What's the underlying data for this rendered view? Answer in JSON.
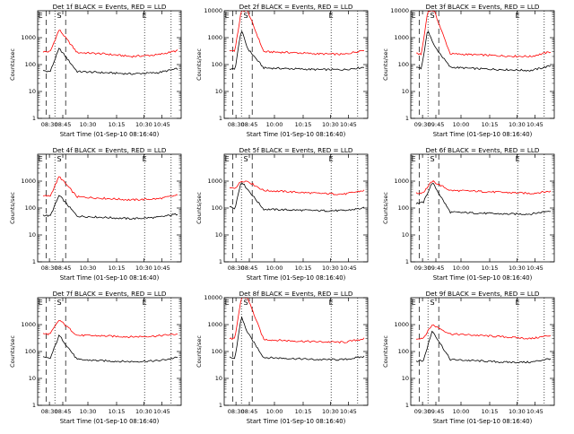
{
  "figure": {
    "background": "#ffffff",
    "axis_color": "#000000"
  },
  "chart_data": [
    {
      "type": "line",
      "title": "Det 1f BLACK = Events, RED = LLD",
      "xlabel": "Start Time (01-Sep-10 08:16:40)",
      "ylabel": "Counts/sec",
      "yscale": "log",
      "ylim": [
        1,
        10000
      ],
      "xlim": [
        "08:16",
        "10:56"
      ],
      "x_ticks": [
        "08:30",
        "08:45",
        "10:30",
        "10:15",
        "10:30",
        "10:45"
      ],
      "y_ticks": [
        "1",
        "10",
        "100",
        "1000"
      ],
      "markers": [
        "E",
        "S",
        "E"
      ],
      "series": [
        {
          "color": "#ff0000",
          "x": [
            "08:22",
            "08:30",
            "08:40",
            "09:00",
            "09:30",
            "10:00",
            "10:30",
            "10:52"
          ],
          "values": [
            300,
            300,
            2000,
            280,
            250,
            200,
            230,
            330
          ]
        },
        {
          "color": "#000000",
          "x": [
            "08:22",
            "08:30",
            "08:40",
            "09:00",
            "09:30",
            "10:00",
            "10:30",
            "10:52"
          ],
          "values": [
            60,
            55,
            400,
            55,
            50,
            45,
            50,
            70
          ]
        }
      ]
    },
    {
      "type": "line",
      "title": "Det 2f BLACK = Events, RED = LLD",
      "xlabel": "Start Time (01-Sep-10 08:16:40)",
      "ylabel": "Counts/sec",
      "yscale": "log",
      "ylim": [
        1,
        10000
      ],
      "xlim": [
        "08:16",
        "10:56"
      ],
      "x_ticks": [
        "08:30",
        "08:45",
        "10:00",
        "10:15",
        "10:30",
        "10:45"
      ],
      "y_ticks": [
        "1",
        "10",
        "100",
        "1000",
        "10000"
      ],
      "markers": [
        "E",
        "S",
        "E"
      ],
      "series": [
        {
          "color": "#ff0000",
          "x": [
            "08:22",
            "08:28",
            "08:35",
            "08:42",
            "09:00",
            "09:30",
            "10:00",
            "10:30",
            "10:52"
          ],
          "values": [
            330,
            330,
            10000,
            10000,
            300,
            280,
            250,
            240,
            350
          ]
        },
        {
          "color": "#000000",
          "x": [
            "08:22",
            "08:28",
            "08:35",
            "08:42",
            "09:00",
            "09:30",
            "10:00",
            "10:30",
            "10:52"
          ],
          "values": [
            70,
            65,
            2000,
            400,
            75,
            70,
            65,
            65,
            80
          ]
        }
      ]
    },
    {
      "type": "line",
      "title": "Det 3f BLACK = Events, RED = LLD",
      "xlabel": "Start Time (01-Sep-10 08:16:40)",
      "ylabel": "Counts/sec",
      "yscale": "log",
      "ylim": [
        1,
        10000
      ],
      "xlim": [
        "08:16",
        "10:56"
      ],
      "x_ticks": [
        "09:30",
        "09:45",
        "10:00",
        "10:15",
        "10:30",
        "10:45"
      ],
      "y_ticks": [
        "1",
        "10",
        "100",
        "1000",
        "10000"
      ],
      "markers": [
        "E",
        "S",
        "E"
      ],
      "series": [
        {
          "color": "#ff0000",
          "x": [
            "08:22",
            "08:28",
            "08:35",
            "08:42",
            "09:00",
            "09:30",
            "10:00",
            "10:30",
            "10:52"
          ],
          "values": [
            250,
            250,
            10000,
            10000,
            250,
            230,
            210,
            200,
            300
          ]
        },
        {
          "color": "#000000",
          "x": [
            "08:22",
            "08:28",
            "08:35",
            "08:42",
            "09:00",
            "09:30",
            "10:00",
            "10:30",
            "10:52"
          ],
          "values": [
            80,
            75,
            2000,
            500,
            80,
            70,
            65,
            60,
            90
          ]
        }
      ]
    },
    {
      "type": "line",
      "title": "Det 4f BLACK = Events, RED = LLD",
      "xlabel": "Start Time (01-Sep-10 08:16:40)",
      "ylabel": "Counts/sec",
      "yscale": "log",
      "ylim": [
        1,
        10000
      ],
      "xlim": [
        "08:16",
        "10:56"
      ],
      "x_ticks": [
        "08:30",
        "08:45",
        "10:30",
        "10:15",
        "10:30",
        "10:45"
      ],
      "y_ticks": [
        "1",
        "10",
        "100",
        "1000"
      ],
      "markers": [
        "E",
        "S",
        "E"
      ],
      "series": [
        {
          "color": "#ff0000",
          "x": [
            "08:22",
            "08:30",
            "08:40",
            "09:00",
            "09:30",
            "10:00",
            "10:30",
            "10:52"
          ],
          "values": [
            280,
            280,
            1500,
            260,
            230,
            200,
            220,
            300
          ]
        },
        {
          "color": "#000000",
          "x": [
            "08:22",
            "08:30",
            "08:40",
            "09:00",
            "09:30",
            "10:00",
            "10:30",
            "10:52"
          ],
          "values": [
            55,
            50,
            300,
            50,
            45,
            40,
            45,
            60
          ]
        }
      ]
    },
    {
      "type": "line",
      "title": "Det 5f BLACK = Events, RED = LLD",
      "xlabel": "Start Time (01-Sep-10 08:16:40)",
      "ylabel": "Counts/sec",
      "yscale": "log",
      "ylim": [
        1,
        10000
      ],
      "xlim": [
        "08:16",
        "10:56"
      ],
      "x_ticks": [
        "08:30",
        "08:45",
        "10:00",
        "10:15",
        "10:30",
        "10:45"
      ],
      "y_ticks": [
        "1",
        "10",
        "100",
        "1000"
      ],
      "markers": [
        "E",
        "S",
        "E"
      ],
      "series": [
        {
          "color": "#ff0000",
          "x": [
            "08:22",
            "08:28",
            "08:35",
            "08:42",
            "09:00",
            "09:30",
            "10:00",
            "10:30",
            "10:52"
          ],
          "values": [
            550,
            550,
            1000,
            1000,
            450,
            400,
            350,
            330,
            450
          ]
        },
        {
          "color": "#000000",
          "x": [
            "08:22",
            "08:28",
            "08:35",
            "08:42",
            "09:00",
            "09:30",
            "10:00",
            "10:30",
            "10:52"
          ],
          "values": [
            110,
            100,
            1000,
            500,
            90,
            85,
            80,
            80,
            100
          ]
        }
      ]
    },
    {
      "type": "line",
      "title": "Det 6f BLACK = Events, RED = LLD",
      "xlabel": "Start Time (01-Sep-10 08:16:40)",
      "ylabel": "Counts/sec",
      "yscale": "log",
      "ylim": [
        1,
        10000
      ],
      "xlim": [
        "08:16",
        "10:56"
      ],
      "x_ticks": [
        "09:30",
        "09:45",
        "10:00",
        "10:15",
        "10:30",
        "10:45"
      ],
      "y_ticks": [
        "1",
        "10",
        "100",
        "1000"
      ],
      "markers": [
        "E",
        "S",
        "E"
      ],
      "series": [
        {
          "color": "#ff0000",
          "x": [
            "08:22",
            "08:30",
            "08:40",
            "09:00",
            "09:30",
            "10:00",
            "10:30",
            "10:52"
          ],
          "values": [
            350,
            380,
            1000,
            450,
            420,
            380,
            350,
            420
          ]
        },
        {
          "color": "#000000",
          "x": [
            "08:22",
            "08:30",
            "08:40",
            "09:00",
            "09:30",
            "10:00",
            "10:30",
            "10:52"
          ],
          "values": [
            150,
            160,
            900,
            70,
            65,
            60,
            60,
            80
          ]
        }
      ]
    },
    {
      "type": "line",
      "title": "Det 7f BLACK = Events, RED = LLD",
      "xlabel": "Start Time (01-Sep-10 08:16:40)",
      "ylabel": "Counts/sec",
      "yscale": "log",
      "ylim": [
        1,
        10000
      ],
      "xlim": [
        "08:16",
        "10:56"
      ],
      "x_ticks": [
        "08:30",
        "08:45",
        "10:30",
        "10:15",
        "10:30",
        "10:45"
      ],
      "y_ticks": [
        "1",
        "10",
        "100",
        "1000"
      ],
      "markers": [
        "E",
        "S",
        "E"
      ],
      "series": [
        {
          "color": "#ff0000",
          "x": [
            "08:22",
            "08:30",
            "08:40",
            "09:00",
            "09:30",
            "10:00",
            "10:30",
            "10:52"
          ],
          "values": [
            450,
            450,
            1500,
            400,
            380,
            350,
            380,
            450
          ]
        },
        {
          "color": "#000000",
          "x": [
            "08:22",
            "08:30",
            "08:40",
            "09:00",
            "09:30",
            "10:00",
            "10:30",
            "10:52"
          ],
          "values": [
            60,
            55,
            400,
            50,
            45,
            42,
            45,
            60
          ]
        }
      ]
    },
    {
      "type": "line",
      "title": "Det 8f BLACK = Events, RED = LLD",
      "xlabel": "Start Time (01-Sep-10 08:16:40)",
      "ylabel": "Counts/sec",
      "yscale": "log",
      "ylim": [
        1,
        10000
      ],
      "xlim": [
        "08:16",
        "10:56"
      ],
      "x_ticks": [
        "08:30",
        "08:45",
        "10:00",
        "10:15",
        "10:30",
        "10:45"
      ],
      "y_ticks": [
        "1",
        "10",
        "100",
        "1000",
        "10000"
      ],
      "markers": [
        "E",
        "S",
        "E"
      ],
      "series": [
        {
          "color": "#ff0000",
          "x": [
            "08:22",
            "08:28",
            "08:35",
            "08:42",
            "09:00",
            "09:30",
            "10:00",
            "10:30",
            "10:52"
          ],
          "values": [
            300,
            300,
            10000,
            10000,
            280,
            250,
            230,
            220,
            300
          ]
        },
        {
          "color": "#000000",
          "x": [
            "08:22",
            "08:28",
            "08:35",
            "08:42",
            "09:00",
            "09:30",
            "10:00",
            "10:30",
            "10:52"
          ],
          "values": [
            60,
            55,
            2000,
            500,
            60,
            55,
            50,
            50,
            65
          ]
        }
      ]
    },
    {
      "type": "line",
      "title": "Det 9f BLACK = Events, RED = LLD",
      "xlabel": "Start Time (01-Sep-10 08:16:40)",
      "ylabel": "Counts/sec",
      "yscale": "log",
      "ylim": [
        1,
        10000
      ],
      "xlim": [
        "08:16",
        "10:56"
      ],
      "x_ticks": [
        "09:30",
        "09:45",
        "10:00",
        "10:15",
        "10:30",
        "10:45"
      ],
      "y_ticks": [
        "1",
        "10",
        "100",
        "1000"
      ],
      "markers": [
        "E",
        "S",
        "E"
      ],
      "series": [
        {
          "color": "#ff0000",
          "x": [
            "08:22",
            "08:30",
            "08:40",
            "09:00",
            "09:30",
            "10:00",
            "10:30",
            "10:52"
          ],
          "values": [
            300,
            320,
            1000,
            450,
            400,
            350,
            300,
            400
          ]
        },
        {
          "color": "#000000",
          "x": [
            "08:22",
            "08:30",
            "08:40",
            "09:00",
            "09:30",
            "10:00",
            "10:30",
            "10:52"
          ],
          "values": [
            45,
            45,
            600,
            50,
            45,
            40,
            40,
            55
          ]
        }
      ]
    }
  ]
}
